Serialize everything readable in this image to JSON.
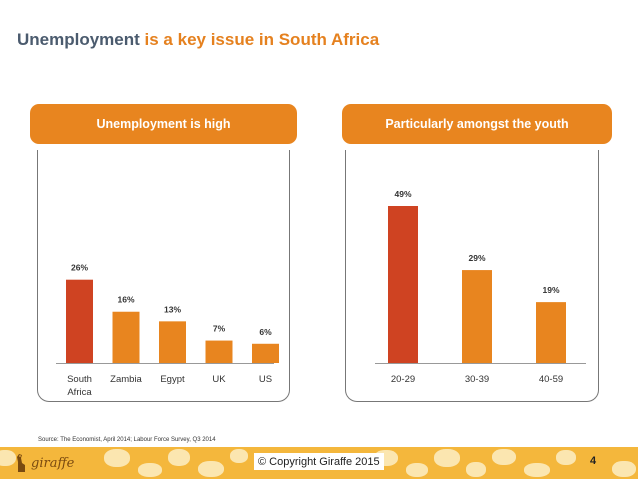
{
  "slide": {
    "title_part1": "Unemployment",
    "title_part2": "is a key issue in South Africa",
    "source": "Source: The Economist, April 2014; Labour Force Survey, Q3 2014",
    "copyright": "© Copyright Giraffe 2015",
    "page_number": "4",
    "logo_text": "giraffe"
  },
  "colors": {
    "accent_orange": "#e8851f",
    "highlight_red": "#cf4322",
    "title_gray": "#4b5b6e",
    "title_orange": "#e5811f",
    "footer_yellow": "#f4b73c"
  },
  "chart_data": [
    {
      "type": "bar",
      "title": "Unemployment is high",
      "categories": [
        "South Africa",
        "Zambia",
        "Egypt",
        "UK",
        "US"
      ],
      "values": [
        26,
        16,
        13,
        7,
        6
      ],
      "value_labels": [
        "26%",
        "16%",
        "13%",
        "7%",
        "6%"
      ],
      "highlight_index": 0,
      "ylim": [
        0,
        50
      ],
      "xlabel": "",
      "ylabel": "",
      "grid": false
    },
    {
      "type": "bar",
      "title": "Particularly amongst the youth",
      "categories": [
        "20-29",
        "30-39",
        "40-59"
      ],
      "values": [
        49,
        29,
        19
      ],
      "value_labels": [
        "49%",
        "29%",
        "19%"
      ],
      "highlight_index": 0,
      "ylim": [
        0,
        50
      ],
      "xlabel": "",
      "ylabel": "",
      "grid": false
    }
  ]
}
